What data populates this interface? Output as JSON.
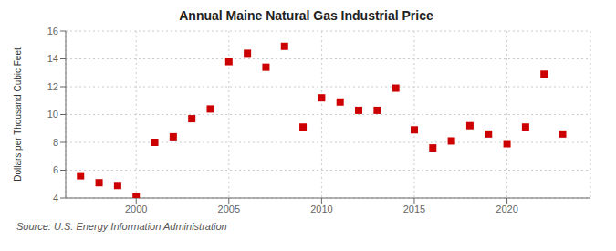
{
  "chart_data": {
    "type": "scatter",
    "title": "Annual Maine Natural Gas Industrial Price",
    "y_label": "Dollars per Thousand Cubic Feet",
    "source": "Source: U.S. Energy Information Administration",
    "x": [
      1997,
      1998,
      1999,
      2000,
      2001,
      2002,
      2003,
      2004,
      2005,
      2006,
      2007,
      2008,
      2009,
      2010,
      2011,
      2012,
      2013,
      2014,
      2015,
      2016,
      2017,
      2018,
      2019,
      2020,
      2021,
      2022,
      2023
    ],
    "values": [
      5.6,
      5.1,
      4.9,
      4.1,
      8.0,
      8.4,
      9.7,
      10.4,
      13.8,
      14.4,
      13.4,
      14.9,
      9.1,
      11.2,
      10.9,
      10.3,
      10.3,
      11.9,
      8.9,
      7.6,
      8.1,
      9.2,
      8.6,
      7.9,
      9.1,
      12.9,
      8.6
    ],
    "color": "#cc0000",
    "marker": "square",
    "xlim": [
      1996.2,
      2024.5
    ],
    "xticks": [
      2000,
      2005,
      2010,
      2015,
      2020
    ],
    "ylim": [
      4,
      16
    ],
    "yticks": [
      4,
      6,
      8,
      10,
      12,
      14,
      16
    ],
    "grid": true
  }
}
